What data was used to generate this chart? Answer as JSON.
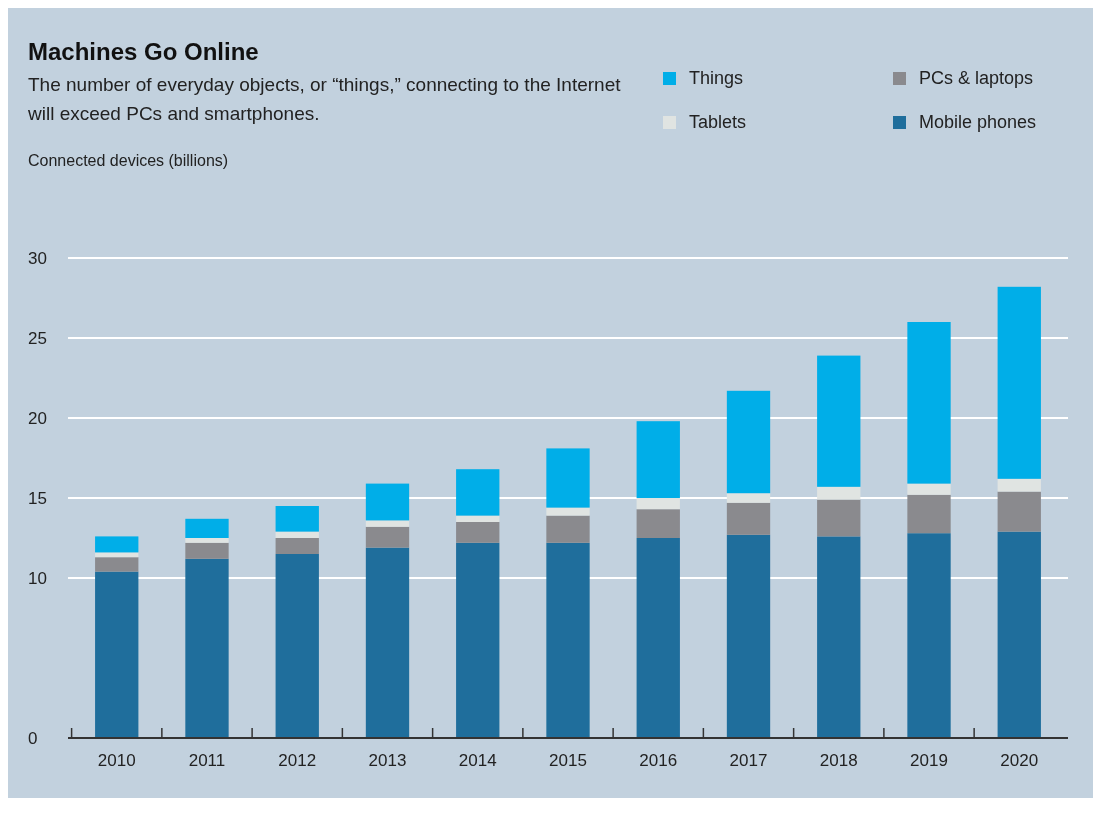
{
  "chart_data": {
    "type": "bar",
    "stacked": true,
    "title": "Machines Go Online",
    "subtitle": "The number of everyday objects, or “things,” connecting to the Internet will exceed PCs and smartphones.",
    "ylabel": "Connected devices (billions)",
    "categories": [
      "2010",
      "2011",
      "2012",
      "2013",
      "2014",
      "2015",
      "2016",
      "2017",
      "2018",
      "2019",
      "2020"
    ],
    "series": [
      {
        "name": "Mobile phones",
        "color": "#1f6e9c",
        "values": [
          10.4,
          11.2,
          11.5,
          11.9,
          12.2,
          12.2,
          12.5,
          12.7,
          12.6,
          12.8,
          12.9
        ]
      },
      {
        "name": "PCs & laptops",
        "color": "#8a8a8e",
        "values": [
          0.9,
          1.0,
          1.0,
          1.3,
          1.3,
          1.7,
          1.8,
          2.0,
          2.3,
          2.4,
          2.5
        ]
      },
      {
        "name": "Tablets",
        "color": "#e0e4e2",
        "values": [
          0.3,
          0.3,
          0.4,
          0.4,
          0.4,
          0.5,
          0.7,
          0.6,
          0.8,
          0.7,
          0.8
        ]
      },
      {
        "name": "Things",
        "color": "#00aee8",
        "values": [
          1.0,
          1.2,
          1.6,
          2.3,
          2.9,
          3.7,
          4.8,
          6.4,
          8.2,
          10.1,
          12.0
        ]
      }
    ],
    "ylim": [
      0,
      30
    ],
    "yticks": [
      0,
      10,
      15,
      20,
      25,
      30
    ],
    "grid": "y",
    "legend": "top right"
  }
}
